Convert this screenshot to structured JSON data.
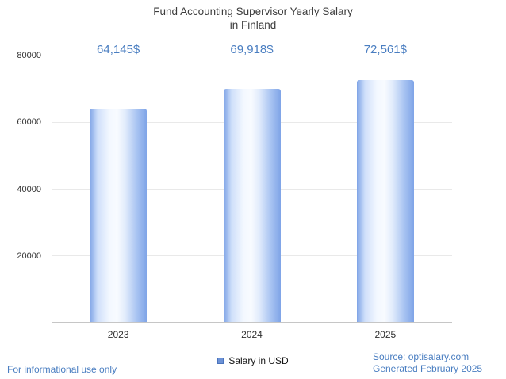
{
  "title": {
    "line1": "Fund Accounting Supervisor Yearly Salary",
    "line2": "in Finland"
  },
  "legend": {
    "label": "Salary in USD"
  },
  "footer": {
    "disclaimer": "For informational use only",
    "source": "Source: optisalary.com",
    "generated": "Generated February 2025"
  },
  "colors": {
    "accent_text_blue": "#4a7ec1",
    "title_gray": "#3d3d3d",
    "gridline_gray": "#e9e9e9",
    "axis_line_gray": "#c6c6c6",
    "bar_gradient_left": "#7ea3e6",
    "bar_gradient_mid": "#f8fbff",
    "bar_gradient_right": "#7fa4e7",
    "legend_swatch_blue": "#6d92d6"
  },
  "chart_data": {
    "type": "bar",
    "title": "Fund Accounting Supervisor Yearly Salary in Finland",
    "categories": [
      "2023",
      "2024",
      "2025"
    ],
    "values": [
      64145,
      69918,
      72561
    ],
    "value_labels": [
      "64,145$",
      "69,918$",
      "72,561$"
    ],
    "series_name": "Salary in USD",
    "xlabel": "",
    "ylabel": "",
    "ylim": [
      0,
      80000
    ],
    "yticks": [
      20000,
      40000,
      60000,
      80000
    ],
    "grid": true,
    "legend_position": "bottom"
  }
}
